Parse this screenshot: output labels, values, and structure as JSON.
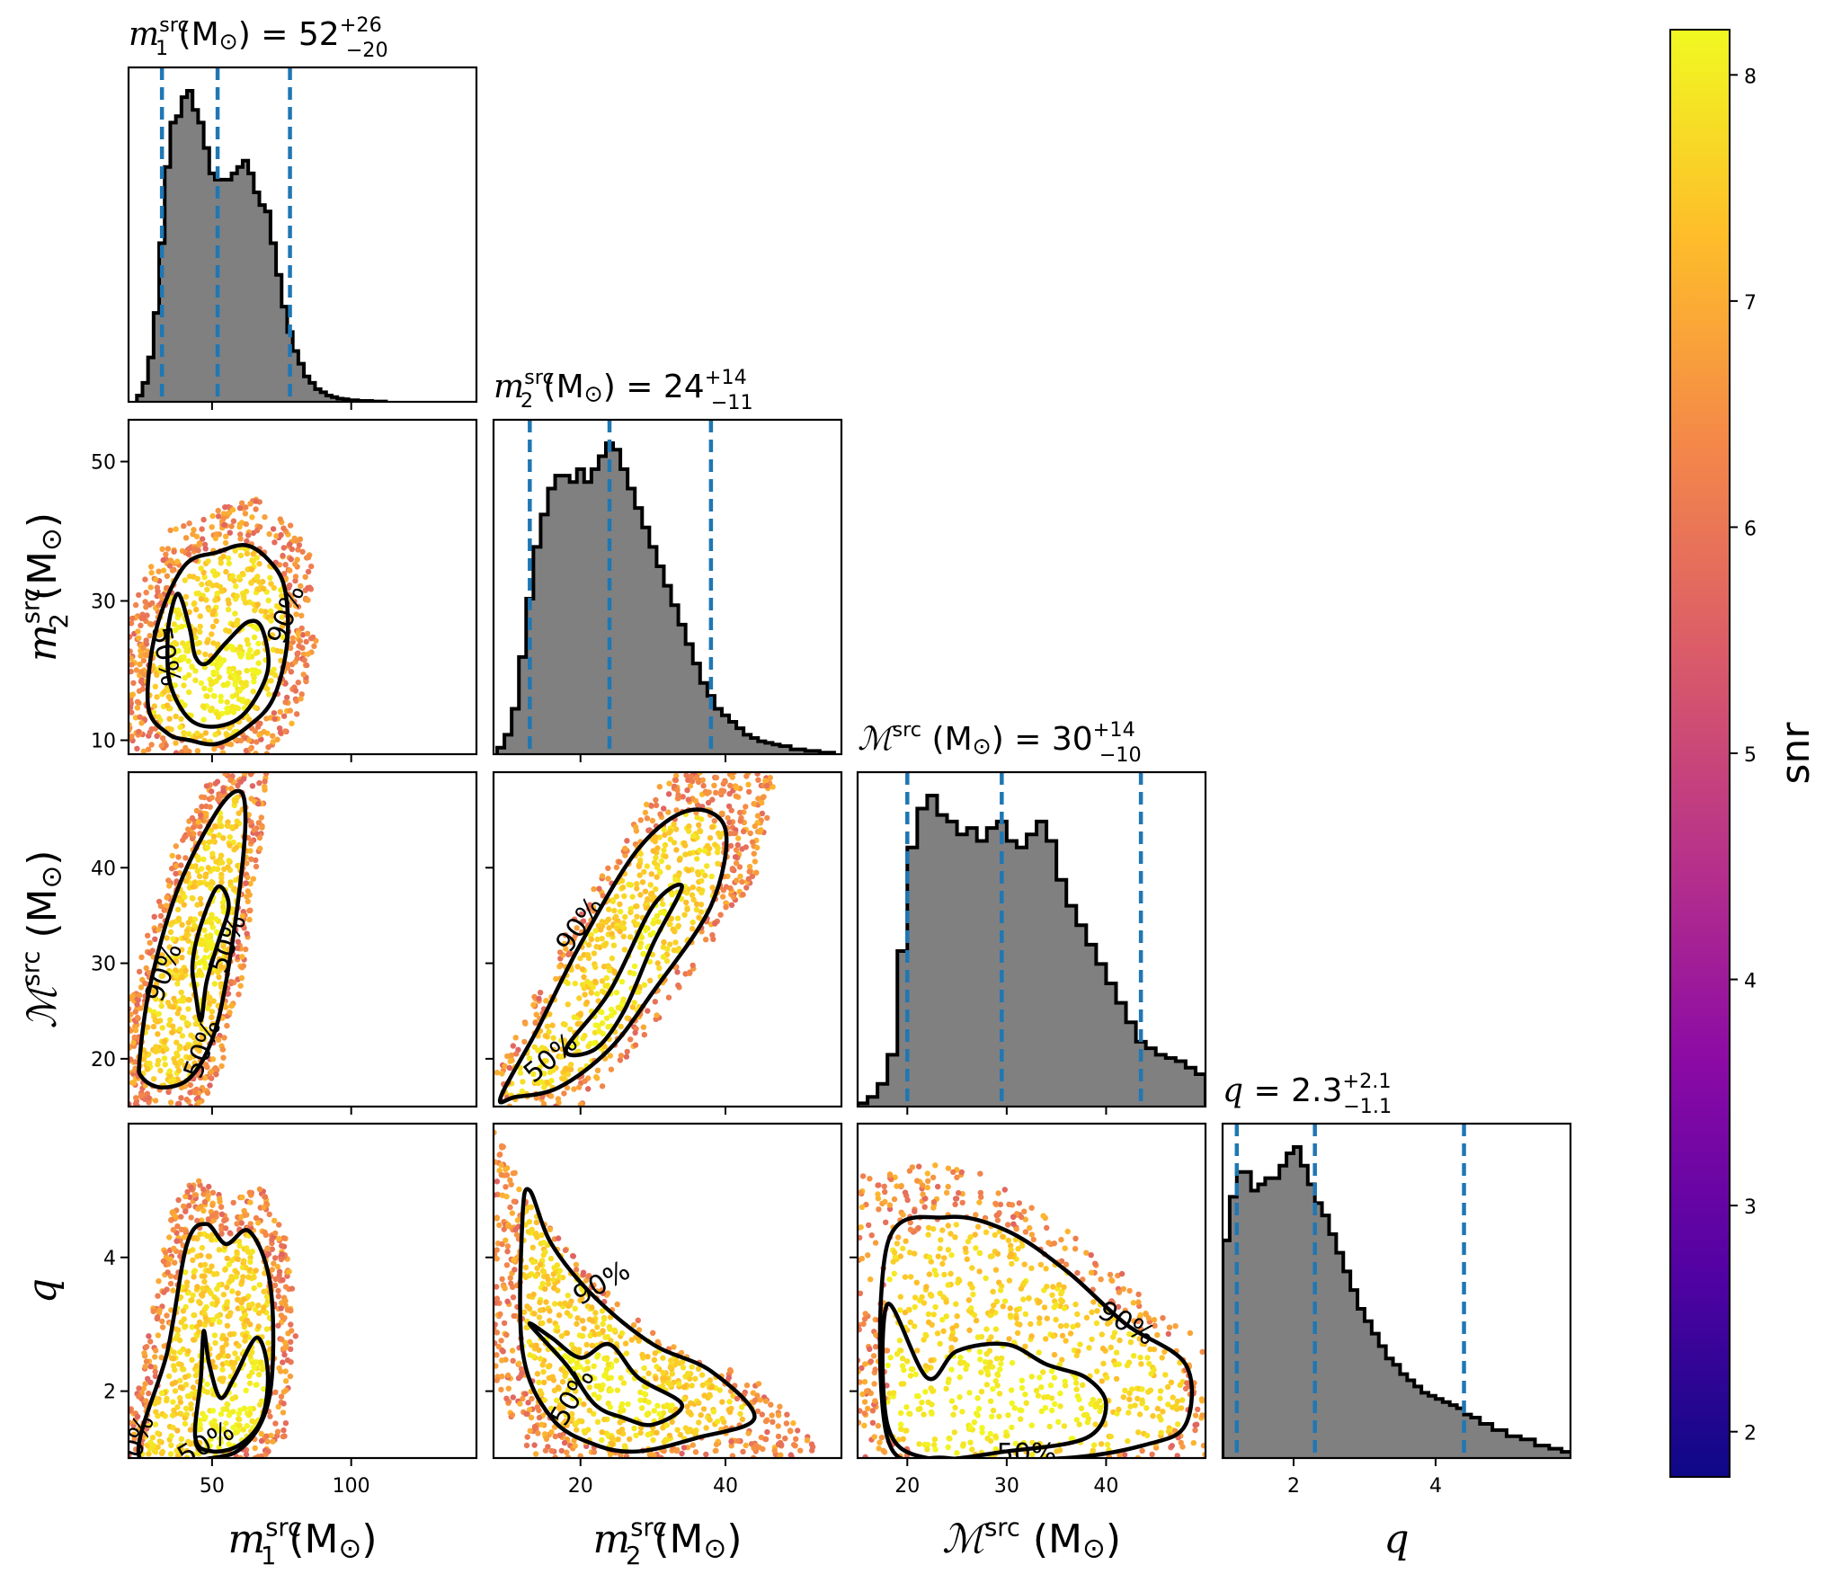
{
  "chart_data": [
    {
      "type": "histogram",
      "parameter": "m1",
      "title_base": "m",
      "title_sub": "1",
      "title_sup": "src",
      "title_unit": " (M",
      "title_unit_close": ") = ",
      "title_value": "52",
      "title_plus": "+26",
      "title_minus": "−20",
      "xlim": [
        20,
        145
      ],
      "x": [
        24,
        26,
        28,
        30,
        32,
        34,
        36,
        38,
        40,
        42,
        44,
        46,
        48,
        50,
        52,
        54,
        56,
        58,
        60,
        62,
        64,
        66,
        68,
        70,
        72,
        74,
        76,
        78,
        80,
        82,
        84,
        86,
        88,
        90,
        92,
        94,
        96,
        98,
        100,
        105,
        110
      ],
      "values": [
        0.02,
        0.06,
        0.14,
        0.28,
        0.5,
        0.74,
        0.88,
        0.9,
        0.96,
        0.98,
        0.92,
        0.88,
        0.8,
        0.72,
        0.7,
        0.7,
        0.7,
        0.72,
        0.74,
        0.76,
        0.72,
        0.66,
        0.62,
        0.6,
        0.5,
        0.4,
        0.3,
        0.22,
        0.16,
        0.12,
        0.08,
        0.06,
        0.04,
        0.03,
        0.02,
        0.015,
        0.01,
        0.008,
        0.005,
        0.003,
        0.001
      ],
      "quantile_lines": [
        32,
        52,
        78
      ]
    },
    {
      "type": "histogram",
      "parameter": "m2",
      "title_base": "m",
      "title_sub": "2",
      "title_sup": "src",
      "title_unit": " (M",
      "title_unit_close": ") = ",
      "title_value": "24",
      "title_plus": "+14",
      "title_minus": "−11",
      "xlim": [
        8,
        56
      ],
      "x": [
        9,
        10,
        11,
        12,
        13,
        14,
        15,
        16,
        17,
        18,
        19,
        20,
        21,
        22,
        23,
        24,
        25,
        26,
        27,
        28,
        29,
        30,
        31,
        32,
        33,
        34,
        35,
        36,
        37,
        38,
        39,
        40,
        41,
        42,
        43,
        44,
        45,
        46,
        47,
        48,
        50,
        52,
        54
      ],
      "values": [
        0.02,
        0.06,
        0.14,
        0.3,
        0.48,
        0.64,
        0.74,
        0.82,
        0.86,
        0.86,
        0.84,
        0.88,
        0.84,
        0.88,
        0.92,
        0.96,
        0.94,
        0.88,
        0.82,
        0.76,
        0.7,
        0.64,
        0.58,
        0.52,
        0.46,
        0.4,
        0.34,
        0.28,
        0.22,
        0.18,
        0.14,
        0.12,
        0.1,
        0.08,
        0.06,
        0.05,
        0.04,
        0.035,
        0.03,
        0.025,
        0.015,
        0.01,
        0.005
      ],
      "quantile_lines": [
        13,
        24,
        38
      ]
    },
    {
      "type": "histogram",
      "parameter": "Mc",
      "title_base": "ℳ",
      "title_sub": "",
      "title_sup": "src",
      "title_unit": " (M",
      "title_unit_close": ") = ",
      "title_value": "30",
      "title_plus": "+14",
      "title_minus": "−10",
      "xlim": [
        15,
        50
      ],
      "x": [
        15.5,
        16.5,
        17.5,
        18.5,
        19.5,
        20.5,
        21.5,
        22.5,
        23.5,
        24.5,
        25.5,
        26.5,
        27.5,
        28.5,
        29.5,
        30.5,
        31.5,
        32.5,
        33.5,
        34.5,
        35.5,
        36.5,
        37.5,
        38.5,
        39.5,
        40.5,
        41.5,
        42.5,
        43.5,
        44.5,
        45.5,
        46.5,
        47.5,
        48.5,
        49.5
      ],
      "values": [
        0.01,
        0.03,
        0.07,
        0.16,
        0.48,
        0.8,
        0.92,
        0.96,
        0.9,
        0.88,
        0.84,
        0.86,
        0.82,
        0.86,
        0.88,
        0.82,
        0.8,
        0.84,
        0.88,
        0.82,
        0.7,
        0.62,
        0.56,
        0.5,
        0.44,
        0.38,
        0.32,
        0.26,
        0.2,
        0.18,
        0.16,
        0.15,
        0.14,
        0.12,
        0.1
      ],
      "quantile_lines": [
        20,
        29.5,
        43.5
      ]
    },
    {
      "type": "histogram",
      "parameter": "q",
      "title_base": "q",
      "title_sub": "",
      "title_sup": "",
      "title_unit": "",
      "title_unit_close": " = ",
      "title_value": "2.3",
      "title_plus": "+2.1",
      "title_minus": "−1.1",
      "xlim": [
        1,
        5.9
      ],
      "x": [
        1.05,
        1.15,
        1.25,
        1.35,
        1.45,
        1.55,
        1.65,
        1.75,
        1.85,
        1.95,
        2.05,
        2.15,
        2.25,
        2.35,
        2.45,
        2.55,
        2.65,
        2.75,
        2.85,
        2.95,
        3.05,
        3.15,
        3.25,
        3.35,
        3.45,
        3.55,
        3.65,
        3.75,
        3.85,
        3.95,
        4.05,
        4.15,
        4.25,
        4.35,
        4.45,
        4.55,
        4.7,
        4.9,
        5.1,
        5.3,
        5.5,
        5.7,
        5.85
      ],
      "values": [
        0.7,
        0.84,
        0.92,
        0.92,
        0.86,
        0.88,
        0.9,
        0.9,
        0.94,
        0.98,
        1.0,
        0.94,
        0.88,
        0.82,
        0.78,
        0.72,
        0.66,
        0.6,
        0.54,
        0.48,
        0.44,
        0.4,
        0.36,
        0.32,
        0.3,
        0.27,
        0.25,
        0.23,
        0.21,
        0.2,
        0.19,
        0.18,
        0.17,
        0.16,
        0.14,
        0.13,
        0.11,
        0.09,
        0.07,
        0.06,
        0.04,
        0.03,
        0.02
      ],
      "quantile_lines": [
        1.2,
        2.3,
        4.4
      ]
    },
    {
      "type": "scatter",
      "x_param": "m1",
      "y_param": "m2",
      "xlim": [
        20,
        145
      ],
      "ylim": [
        8,
        56
      ],
      "contours": [
        {
          "label": "50%",
          "points": [
            [
              35,
              28
            ],
            [
              38,
              31
            ],
            [
              42,
              26
            ],
            [
              44,
              22
            ],
            [
              48,
              21
            ],
            [
              55,
              24
            ],
            [
              63,
              27
            ],
            [
              68,
              26
            ],
            [
              70,
              20
            ],
            [
              62,
              14
            ],
            [
              52,
              12
            ],
            [
              42,
              13
            ],
            [
              35,
              18
            ],
            [
              34,
              24
            ]
          ]
        },
        {
          "label": "90%",
          "points": [
            [
              27,
              15
            ],
            [
              30,
              26
            ],
            [
              40,
              35
            ],
            [
              52,
              37
            ],
            [
              62,
              38
            ],
            [
              70,
              36
            ],
            [
              76,
              32
            ],
            [
              77,
              24
            ],
            [
              72,
              16
            ],
            [
              63,
              12
            ],
            [
              52,
              9.5
            ],
            [
              42,
              10
            ],
            [
              34,
              11
            ]
          ]
        }
      ],
      "contour_labels": [
        {
          "text": "50%",
          "x": 33,
          "y": 22,
          "angle": 80
        },
        {
          "text": "90%",
          "x": 77,
          "y": 28,
          "angle": -70
        }
      ]
    },
    {
      "type": "scatter",
      "x_param": "m1",
      "y_param": "Mc",
      "xlim": [
        20,
        145
      ],
      "ylim": [
        15,
        50
      ],
      "contours": [
        {
          "label": "50%",
          "points": [
            [
              43,
              30
            ],
            [
              46,
              34
            ],
            [
              52,
              38
            ],
            [
              56,
              36
            ],
            [
              52,
              32
            ],
            [
              48,
              28
            ],
            [
              46,
              24
            ],
            [
              44,
              27
            ]
          ]
        },
        {
          "label": "90%",
          "points": [
            [
              24,
              20
            ],
            [
              28,
              28
            ],
            [
              38,
              38
            ],
            [
              52,
              46
            ],
            [
              60,
              48
            ],
            [
              62,
              45
            ],
            [
              60,
              38
            ],
            [
              55,
              28
            ],
            [
              50,
              22
            ],
            [
              42,
              18
            ],
            [
              32,
              17
            ],
            [
              25,
              18
            ]
          ]
        }
      ],
      "contour_labels": [
        {
          "text": "90%",
          "x": 33,
          "y": 29,
          "angle": -70
        },
        {
          "text": "50%",
          "x": 47,
          "y": 21,
          "angle": -70
        },
        {
          "text": "50%",
          "x": 56,
          "y": 32,
          "angle": -70
        }
      ]
    },
    {
      "type": "scatter",
      "x_param": "m2",
      "y_param": "Mc",
      "xlim": [
        8,
        56
      ],
      "ylim": [
        15,
        50
      ],
      "contours": [
        {
          "label": "50%",
          "points": [
            [
              18,
              21
            ],
            [
              24,
              27
            ],
            [
              30,
              36
            ],
            [
              34,
              38
            ],
            [
              30,
              32
            ],
            [
              26,
              25
            ],
            [
              22,
              21
            ]
          ]
        },
        {
          "label": "90%",
          "points": [
            [
              9,
              16
            ],
            [
              14,
              23
            ],
            [
              20,
              32
            ],
            [
              28,
              42
            ],
            [
              35,
              46
            ],
            [
              40,
              44
            ],
            [
              38,
              36
            ],
            [
              30,
              27
            ],
            [
              24,
              21
            ],
            [
              17,
              17
            ],
            [
              11,
              16
            ]
          ]
        }
      ],
      "contour_labels": [
        {
          "text": "90%",
          "x": 20,
          "y": 34,
          "angle": -55
        },
        {
          "text": "50%",
          "x": 16,
          "y": 20,
          "angle": -40
        }
      ]
    },
    {
      "type": "scatter",
      "x_param": "m1",
      "y_param": "q",
      "xlim": [
        20,
        145
      ],
      "ylim": [
        1,
        6
      ],
      "contours": [
        {
          "label": "50%",
          "points": [
            [
              46,
              2.2
            ],
            [
              47,
              2.9
            ],
            [
              49,
              2.4
            ],
            [
              53,
              1.9
            ],
            [
              58,
              2.2
            ],
            [
              66,
              2.8
            ],
            [
              70,
              2.3
            ],
            [
              68,
              1.6
            ],
            [
              60,
              1.2
            ],
            [
              50,
              1.1
            ],
            [
              44,
              1.3
            ]
          ]
        },
        {
          "label": "90%",
          "points": [
            [
              24,
              1.0
            ],
            [
              34,
              2.6
            ],
            [
              41,
              4.2
            ],
            [
              48,
              4.5
            ],
            [
              55,
              4.2
            ],
            [
              63,
              4.4
            ],
            [
              70,
              3.8
            ],
            [
              72,
              2.8
            ],
            [
              70,
              1.8
            ],
            [
              62,
              1.2
            ],
            [
              50,
              1.0
            ]
          ]
        }
      ],
      "contour_labels": [
        {
          "text": "90%",
          "x": 23,
          "y": 1.2,
          "angle": -70
        },
        {
          "text": "50%",
          "x": 48,
          "y": 1.2,
          "angle": -30
        }
      ]
    },
    {
      "type": "scatter",
      "x_param": "m2",
      "y_param": "q",
      "xlim": [
        8,
        56
      ],
      "ylim": [
        1,
        6
      ],
      "contours": [
        {
          "label": "50%",
          "points": [
            [
              13,
              3.0
            ],
            [
              18,
              2.4
            ],
            [
              22,
              1.8
            ],
            [
              26,
              1.6
            ],
            [
              30,
              1.5
            ],
            [
              34,
              1.8
            ],
            [
              28,
              2.2
            ],
            [
              24,
              2.7
            ],
            [
              20,
              2.5
            ],
            [
              16,
              2.8
            ]
          ]
        },
        {
          "label": "90%",
          "points": [
            [
              12,
              4.6
            ],
            [
              13,
              5.0
            ],
            [
              16,
              4.2
            ],
            [
              22,
              3.4
            ],
            [
              30,
              2.7
            ],
            [
              38,
              2.3
            ],
            [
              44,
              1.6
            ],
            [
              36,
              1.3
            ],
            [
              28,
              1.1
            ],
            [
              22,
              1.2
            ],
            [
              16,
              1.6
            ],
            [
              12,
              2.6
            ]
          ]
        }
      ],
      "contour_labels": [
        {
          "text": "90%",
          "x": 23,
          "y": 3.6,
          "angle": -30
        },
        {
          "text": "50%",
          "x": 19,
          "y": 1.9,
          "angle": -60
        }
      ]
    },
    {
      "type": "scatter",
      "x_param": "Mc",
      "y_param": "q",
      "xlim": [
        15,
        50
      ],
      "ylim": [
        1,
        6
      ],
      "contours": [
        {
          "label": "50%",
          "points": [
            [
              18,
              3.3
            ],
            [
              22,
              2.2
            ],
            [
              25,
              2.6
            ],
            [
              30,
              2.7
            ],
            [
              34,
              2.4
            ],
            [
              38,
              2.2
            ],
            [
              40,
              1.8
            ],
            [
              38,
              1.3
            ],
            [
              30,
              1.1
            ],
            [
              22,
              1.0
            ],
            [
              18,
              1.5
            ]
          ]
        },
        {
          "label": "90%",
          "points": [
            [
              18,
              4.2
            ],
            [
              24,
              4.6
            ],
            [
              30,
              4.4
            ],
            [
              36,
              3.8
            ],
            [
              42,
              3.0
            ],
            [
              48,
              2.4
            ],
            [
              48,
              1.5
            ],
            [
              44,
              1.2
            ],
            [
              36,
              1.0
            ],
            [
              24,
              1.0
            ],
            [
              18,
              1.3
            ]
          ]
        }
      ],
      "contour_labels": [
        {
          "text": "90%",
          "x": 42,
          "y": 3.0,
          "angle": 30
        },
        {
          "text": "50%",
          "x": 32,
          "y": 1.05,
          "angle": 0
        }
      ]
    }
  ],
  "axes": {
    "m1": {
      "label_base": "m",
      "label_sub": "1",
      "label_sup": "src",
      "label_unit": " (M",
      "label_close": ")",
      "ticks": [
        50,
        100
      ]
    },
    "m2": {
      "label_base": "m",
      "label_sub": "2",
      "label_sup": "src",
      "label_unit": " (M",
      "label_close": ")",
      "ticks": [
        10,
        30,
        50
      ],
      "xticks": [
        20,
        40
      ]
    },
    "Mc": {
      "label_base": "ℳ",
      "label_sub": "",
      "label_sup": "src",
      "label_unit": " (M",
      "label_close": ")",
      "ticks": [
        20,
        30,
        40
      ]
    },
    "q": {
      "label_base": "q",
      "label_sub": "",
      "label_sup": "",
      "label_unit": "",
      "label_close": "",
      "ticks": [
        2,
        4
      ]
    }
  },
  "colorbar": {
    "label": "snr",
    "colormap": "plasma",
    "range": [
      1.8,
      8.2
    ],
    "ticks": [
      2,
      3,
      4,
      5,
      6,
      7,
      8
    ],
    "colors": [
      "#0d0887",
      "#5302a3",
      "#8b0aa5",
      "#b83289",
      "#db5c68",
      "#f48849",
      "#febd2a",
      "#f0f921"
    ]
  },
  "colors": {
    "hist_fill": "#808080",
    "hist_edge": "#000000",
    "quantile_line": "#1f77b4",
    "contour": "#000000"
  }
}
